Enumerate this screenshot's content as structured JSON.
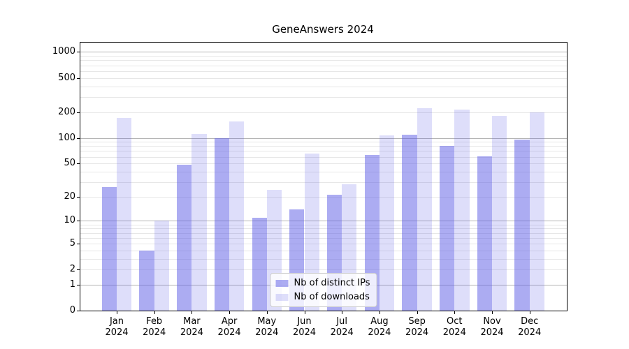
{
  "chart_data": {
    "type": "bar",
    "title": "GeneAnswers 2024",
    "categories": [
      "Jan 2024",
      "Feb 2024",
      "Mar 2024",
      "Apr 2024",
      "May 2024",
      "Jun 2024",
      "Jul 2024",
      "Aug 2024",
      "Sep 2024",
      "Oct 2024",
      "Nov 2024",
      "Dec 2024"
    ],
    "series": [
      {
        "name": "Nb of distinct IPs",
        "color": "rgba(90,90,230,0.5)",
        "values": [
          26,
          4,
          48,
          100,
          11,
          14,
          21,
          63,
          108,
          81,
          61,
          96
        ]
      },
      {
        "name": "Nb of downloads",
        "color": "rgba(90,90,230,0.2)",
        "values": [
          170,
          10,
          110,
          155,
          24,
          66,
          28,
          107,
          222,
          215,
          182,
          200
        ]
      }
    ],
    "xlabel": "",
    "ylabel": "",
    "yscale": "log1p",
    "yticks": [
      0,
      1,
      2,
      5,
      10,
      20,
      50,
      100,
      200,
      500,
      1000
    ],
    "ylim": [
      0,
      1285
    ],
    "grid": {
      "horizontal": true,
      "minor": true,
      "vertical": false
    },
    "legend_position": "lower center"
  },
  "colors": {
    "bar_base": "#5a5ae6",
    "axis": "#000000",
    "grid_major": "#b4b4b4",
    "grid_minor": "#e7e7e7",
    "text": "#000000"
  }
}
